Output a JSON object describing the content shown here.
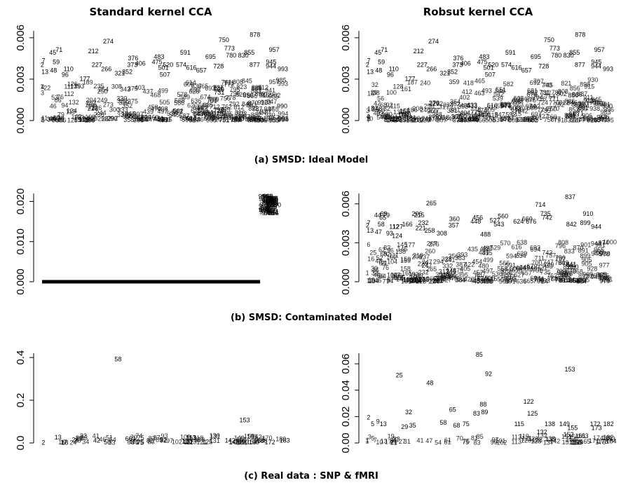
{
  "headers": {
    "left": "Standard kernel CCA",
    "right": "Robsut kernel CCA"
  },
  "captions": {
    "a": "(a) SMSD: Ideal Model",
    "b": "(b) SMSD: Contaminated Model",
    "c": "(c) Real data : SNP & fMRI"
  },
  "chart_data": [
    {
      "id": "a-left",
      "type": "scatter",
      "title": "Standard kernel CCA",
      "marker": "point index label",
      "xlim": [
        1,
        1000
      ],
      "ylim": [
        0,
        0.0065
      ],
      "yticks": [
        "0.000",
        "0.003",
        "0.006"
      ],
      "points": [
        {
          "label": "878",
          "x": 878,
          "y": 0.0062
        },
        {
          "label": "750",
          "x": 750,
          "y": 0.0058
        },
        {
          "label": "274",
          "x": 274,
          "y": 0.0057
        },
        {
          "label": "773",
          "x": 773,
          "y": 0.0052
        },
        {
          "label": "957",
          "x": 957,
          "y": 0.0051
        },
        {
          "label": "71",
          "x": 71,
          "y": 0.0051
        },
        {
          "label": "212",
          "x": 212,
          "y": 0.005
        },
        {
          "label": "855",
          "x": 855,
          "y": 0.0049
        },
        {
          "label": "45",
          "x": 45,
          "y": 0.0049
        },
        {
          "label": "591",
          "x": 591,
          "y": 0.0049
        },
        {
          "label": "830",
          "x": 830,
          "y": 0.0047
        },
        {
          "label": "780",
          "x": 780,
          "y": 0.0047
        },
        {
          "label": "483",
          "x": 483,
          "y": 0.0046
        },
        {
          "label": "376",
          "x": 376,
          "y": 0.0045
        },
        {
          "label": "695",
          "x": 695,
          "y": 0.0046
        },
        {
          "label": "7",
          "x": 7,
          "y": 0.0043
        },
        {
          "label": "59",
          "x": 59,
          "y": 0.0042
        },
        {
          "label": "475",
          "x": 475,
          "y": 0.0042
        },
        {
          "label": "406",
          "x": 406,
          "y": 0.0041
        },
        {
          "label": "945",
          "x": 945,
          "y": 0.0042
        },
        {
          "label": "2",
          "x": 2,
          "y": 0.004
        },
        {
          "label": "373",
          "x": 373,
          "y": 0.004
        },
        {
          "label": "227",
          "x": 227,
          "y": 0.004
        },
        {
          "label": "520",
          "x": 520,
          "y": 0.004
        },
        {
          "label": "574",
          "x": 574,
          "y": 0.004
        },
        {
          "label": "877",
          "x": 877,
          "y": 0.004
        },
        {
          "label": "944",
          "x": 944,
          "y": 0.0039
        },
        {
          "label": "110",
          "x": 110,
          "y": 0.0037
        },
        {
          "label": "266",
          "x": 266,
          "y": 0.0037
        },
        {
          "label": "13",
          "x": 13,
          "y": 0.0035
        },
        {
          "label": "48",
          "x": 48,
          "y": 0.0036
        },
        {
          "label": "352",
          "x": 352,
          "y": 0.0035
        },
        {
          "label": "501",
          "x": 501,
          "y": 0.0038
        },
        {
          "label": "616",
          "x": 616,
          "y": 0.0038
        },
        {
          "label": "728",
          "x": 728,
          "y": 0.0039
        },
        {
          "label": "96",
          "x": 96,
          "y": 0.0033
        },
        {
          "label": "321",
          "x": 321,
          "y": 0.0034
        },
        {
          "label": "657",
          "x": 657,
          "y": 0.0036
        },
        {
          "label": "993",
          "x": 993,
          "y": 0.0037
        },
        {
          "label": "177",
          "x": 177,
          "y": 0.003
        },
        {
          "label": "507",
          "x": 507,
          "y": 0.0033
        },
        {
          "label": "731",
          "x": 731,
          "y": 0.002
        },
        {
          "label": "850",
          "x": 850,
          "y": 0.0018
        },
        {
          "label": "990",
          "x": 990,
          "y": 0.001
        }
      ]
    },
    {
      "id": "a-right",
      "type": "scatter",
      "title": "Robsut kernel CCA",
      "marker": "point index label",
      "xlim": [
        1,
        1000
      ],
      "ylim": [
        0,
        0.0065
      ],
      "yticks": [
        "0.000",
        "0.003",
        "0.006"
      ],
      "points": [
        {
          "label": "878",
          "x": 878,
          "y": 0.0062
        },
        {
          "label": "750",
          "x": 750,
          "y": 0.0058
        },
        {
          "label": "274",
          "x": 274,
          "y": 0.0057
        },
        {
          "label": "773",
          "x": 773,
          "y": 0.0052
        },
        {
          "label": "957",
          "x": 957,
          "y": 0.0051
        },
        {
          "label": "71",
          "x": 71,
          "y": 0.0051
        },
        {
          "label": "212",
          "x": 212,
          "y": 0.005
        },
        {
          "label": "855",
          "x": 855,
          "y": 0.0049
        },
        {
          "label": "45",
          "x": 45,
          "y": 0.0049
        },
        {
          "label": "591",
          "x": 591,
          "y": 0.0049
        },
        {
          "label": "830",
          "x": 830,
          "y": 0.0047
        },
        {
          "label": "780",
          "x": 780,
          "y": 0.0047
        },
        {
          "label": "483",
          "x": 483,
          "y": 0.0046
        },
        {
          "label": "376",
          "x": 376,
          "y": 0.0045
        },
        {
          "label": "695",
          "x": 695,
          "y": 0.0046
        },
        {
          "label": "7",
          "x": 7,
          "y": 0.0043
        },
        {
          "label": "59",
          "x": 59,
          "y": 0.0042
        },
        {
          "label": "475",
          "x": 475,
          "y": 0.0042
        },
        {
          "label": "406",
          "x": 406,
          "y": 0.0041
        },
        {
          "label": "945",
          "x": 945,
          "y": 0.0042
        },
        {
          "label": "2",
          "x": 2,
          "y": 0.004
        },
        {
          "label": "373",
          "x": 373,
          "y": 0.004
        },
        {
          "label": "227",
          "x": 227,
          "y": 0.004
        },
        {
          "label": "520",
          "x": 520,
          "y": 0.004
        },
        {
          "label": "574",
          "x": 574,
          "y": 0.004
        },
        {
          "label": "877",
          "x": 877,
          "y": 0.004
        },
        {
          "label": "944",
          "x": 944,
          "y": 0.0039
        },
        {
          "label": "110",
          "x": 110,
          "y": 0.0037
        },
        {
          "label": "266",
          "x": 266,
          "y": 0.0037
        },
        {
          "label": "13",
          "x": 13,
          "y": 0.0035
        },
        {
          "label": "48",
          "x": 48,
          "y": 0.0036
        },
        {
          "label": "352",
          "x": 352,
          "y": 0.0035
        },
        {
          "label": "501",
          "x": 501,
          "y": 0.0038
        },
        {
          "label": "616",
          "x": 616,
          "y": 0.0038
        },
        {
          "label": "728",
          "x": 728,
          "y": 0.0039
        },
        {
          "label": "96",
          "x": 96,
          "y": 0.0033
        },
        {
          "label": "321",
          "x": 321,
          "y": 0.0034
        },
        {
          "label": "657",
          "x": 657,
          "y": 0.0036
        },
        {
          "label": "993",
          "x": 993,
          "y": 0.0037
        },
        {
          "label": "177",
          "x": 177,
          "y": 0.003
        },
        {
          "label": "507",
          "x": 507,
          "y": 0.0033
        },
        {
          "label": "731",
          "x": 731,
          "y": 0.002
        },
        {
          "label": "850",
          "x": 850,
          "y": 0.0018
        },
        {
          "label": "990",
          "x": 990,
          "y": 0.001
        }
      ]
    },
    {
      "id": "b-left",
      "type": "scatter",
      "title": "",
      "marker": "point index label",
      "xlim": [
        1,
        1000
      ],
      "ylim": [
        0,
        0.022
      ],
      "yticks": [
        "0.000",
        "0.010",
        "0.020"
      ],
      "points": [
        {
          "label": "968",
          "x": 968,
          "y": 0.0211
        },
        {
          "label": "994",
          "x": 994,
          "y": 0.0205
        },
        {
          "label": "975",
          "x": 975,
          "y": 0.0195
        },
        {
          "label": "990",
          "x": 990,
          "y": 0.0185
        },
        {
          "label": "958",
          "x": 958,
          "y": 0.0178
        },
        {
          "label": "970",
          "x": 970,
          "y": 0.017
        },
        {
          "label": "1000",
          "x": 1000,
          "y": 0.019
        },
        {
          "label": "982",
          "x": 982,
          "y": 0.0175
        }
      ]
    },
    {
      "id": "b-right",
      "type": "scatter",
      "title": "",
      "marker": "point index label",
      "xlim": [
        1,
        1000
      ],
      "ylim": [
        0,
        0.0068
      ],
      "yticks": [
        "0.000",
        "0.003",
        "0.006"
      ],
      "points": [
        {
          "label": "837",
          "x": 837,
          "y": 0.0065
        },
        {
          "label": "265",
          "x": 265,
          "y": 0.006
        },
        {
          "label": "714",
          "x": 714,
          "y": 0.0059
        },
        {
          "label": "69",
          "x": 69,
          "y": 0.0052
        },
        {
          "label": "206",
          "x": 206,
          "y": 0.0052
        },
        {
          "label": "44",
          "x": 44,
          "y": 0.0051
        },
        {
          "label": "735",
          "x": 735,
          "y": 0.0052
        },
        {
          "label": "910",
          "x": 910,
          "y": 0.0052
        },
        {
          "label": "215",
          "x": 215,
          "y": 0.0051
        },
        {
          "label": "79",
          "x": 79,
          "y": 0.0051
        },
        {
          "label": "65",
          "x": 65,
          "y": 0.0049
        },
        {
          "label": "360",
          "x": 360,
          "y": 0.0048
        },
        {
          "label": "456",
          "x": 456,
          "y": 0.0049
        },
        {
          "label": "560",
          "x": 560,
          "y": 0.005
        },
        {
          "label": "742",
          "x": 742,
          "y": 0.0049
        },
        {
          "label": "527",
          "x": 527,
          "y": 0.0047
        },
        {
          "label": "660",
          "x": 660,
          "y": 0.0048
        },
        {
          "label": "448",
          "x": 448,
          "y": 0.0046
        },
        {
          "label": "624",
          "x": 624,
          "y": 0.0046
        },
        {
          "label": "676",
          "x": 676,
          "y": 0.0046
        },
        {
          "label": "232",
          "x": 232,
          "y": 0.0045
        },
        {
          "label": "7",
          "x": 7,
          "y": 0.0045
        },
        {
          "label": "58",
          "x": 58,
          "y": 0.0044
        },
        {
          "label": "166",
          "x": 166,
          "y": 0.0044
        },
        {
          "label": "357",
          "x": 357,
          "y": 0.0043
        },
        {
          "label": "543",
          "x": 543,
          "y": 0.0044
        },
        {
          "label": "842",
          "x": 842,
          "y": 0.0044
        },
        {
          "label": "899",
          "x": 899,
          "y": 0.0045
        },
        {
          "label": "2",
          "x": 2,
          "y": 0.0043
        },
        {
          "label": "112",
          "x": 112,
          "y": 0.0042
        },
        {
          "label": "127",
          "x": 127,
          "y": 0.0042
        },
        {
          "label": "221",
          "x": 221,
          "y": 0.0041
        },
        {
          "label": "944",
          "x": 944,
          "y": 0.0042
        },
        {
          "label": "13",
          "x": 13,
          "y": 0.0039
        },
        {
          "label": "258",
          "x": 258,
          "y": 0.0039
        },
        {
          "label": "93",
          "x": 93,
          "y": 0.0037
        },
        {
          "label": "308",
          "x": 308,
          "y": 0.0037
        },
        {
          "label": "488",
          "x": 488,
          "y": 0.0036
        },
        {
          "label": "124",
          "x": 124,
          "y": 0.0035
        },
        {
          "label": "850",
          "x": 850,
          "y": 0.0011
        },
        {
          "label": "47",
          "x": 47,
          "y": 0.0038
        }
      ]
    },
    {
      "id": "c-left",
      "type": "scatter",
      "title": "",
      "marker": "point index label",
      "xlim": [
        1,
        184
      ],
      "ylim": [
        0,
        0.42
      ],
      "yticks": [
        "0.0",
        "0.2",
        "0.4"
      ],
      "points": [
        {
          "label": "58",
          "x": 58,
          "y": 0.39
        },
        {
          "label": "153",
          "x": 153,
          "y": 0.105
        },
        {
          "label": "13",
          "x": 13,
          "y": 0.025
        },
        {
          "label": "32",
          "x": 32,
          "y": 0.03
        },
        {
          "label": "26",
          "x": 26,
          "y": 0.012
        },
        {
          "label": "66",
          "x": 66,
          "y": 0.018
        },
        {
          "label": "42",
          "x": 42,
          "y": 0.01
        },
        {
          "label": "82",
          "x": 82,
          "y": 0.01
        },
        {
          "label": "92",
          "x": 92,
          "y": 0.01
        },
        {
          "label": "142",
          "x": 142,
          "y": 0.01
        },
        {
          "label": "183",
          "x": 183,
          "y": 0.01
        },
        {
          "label": "2",
          "x": 2,
          "y": 0.0
        },
        {
          "label": "18",
          "x": 18,
          "y": 0.0
        },
        {
          "label": "50",
          "x": 50,
          "y": 0.002
        },
        {
          "label": "75",
          "x": 75,
          "y": 0.002
        },
        {
          "label": "110",
          "x": 110,
          "y": 0.004
        },
        {
          "label": "125",
          "x": 125,
          "y": 0.003
        },
        {
          "label": "160",
          "x": 160,
          "y": 0.002
        },
        {
          "label": "172",
          "x": 172,
          "y": 0.002
        }
      ]
    },
    {
      "id": "c-right",
      "type": "scatter",
      "title": "",
      "marker": "point index label",
      "xlim": [
        1,
        184
      ],
      "ylim": [
        0,
        0.068
      ],
      "yticks": [
        "0.00",
        "0.02",
        "0.04",
        "0.06"
      ],
      "points": [
        {
          "label": "85",
          "x": 85,
          "y": 0.0665
        },
        {
          "label": "153",
          "x": 153,
          "y": 0.0555
        },
        {
          "label": "92",
          "x": 92,
          "y": 0.052
        },
        {
          "label": "25",
          "x": 25,
          "y": 0.051
        },
        {
          "label": "48",
          "x": 48,
          "y": 0.045
        },
        {
          "label": "122",
          "x": 122,
          "y": 0.031
        },
        {
          "label": "88",
          "x": 88,
          "y": 0.029
        },
        {
          "label": "65",
          "x": 65,
          "y": 0.025
        },
        {
          "label": "32",
          "x": 32,
          "y": 0.023
        },
        {
          "label": "89",
          "x": 89,
          "y": 0.023
        },
        {
          "label": "83",
          "x": 83,
          "y": 0.022
        },
        {
          "label": "125",
          "x": 125,
          "y": 0.022
        },
        {
          "label": "2",
          "x": 2,
          "y": 0.019
        },
        {
          "label": "9",
          "x": 9,
          "y": 0.016
        },
        {
          "label": "5",
          "x": 5,
          "y": 0.014
        },
        {
          "label": "13",
          "x": 13,
          "y": 0.014
        },
        {
          "label": "115",
          "x": 115,
          "y": 0.014
        },
        {
          "label": "138",
          "x": 138,
          "y": 0.014
        },
        {
          "label": "149",
          "x": 149,
          "y": 0.014
        },
        {
          "label": "172",
          "x": 172,
          "y": 0.014
        },
        {
          "label": "182",
          "x": 182,
          "y": 0.014
        },
        {
          "label": "58",
          "x": 58,
          "y": 0.015
        },
        {
          "label": "29",
          "x": 29,
          "y": 0.012
        },
        {
          "label": "35",
          "x": 35,
          "y": 0.013
        },
        {
          "label": "75",
          "x": 75,
          "y": 0.014
        },
        {
          "label": "68",
          "x": 68,
          "y": 0.013
        },
        {
          "label": "155",
          "x": 155,
          "y": 0.011
        },
        {
          "label": "173",
          "x": 173,
          "y": 0.011
        },
        {
          "label": "132",
          "x": 132,
          "y": 0.008
        },
        {
          "label": "152",
          "x": 152,
          "y": 0.006
        },
        {
          "label": "163",
          "x": 163,
          "y": 0.005
        },
        {
          "label": "1",
          "x": 1,
          "y": 0.001
        },
        {
          "label": "184",
          "x": 184,
          "y": 0.001
        }
      ]
    }
  ]
}
